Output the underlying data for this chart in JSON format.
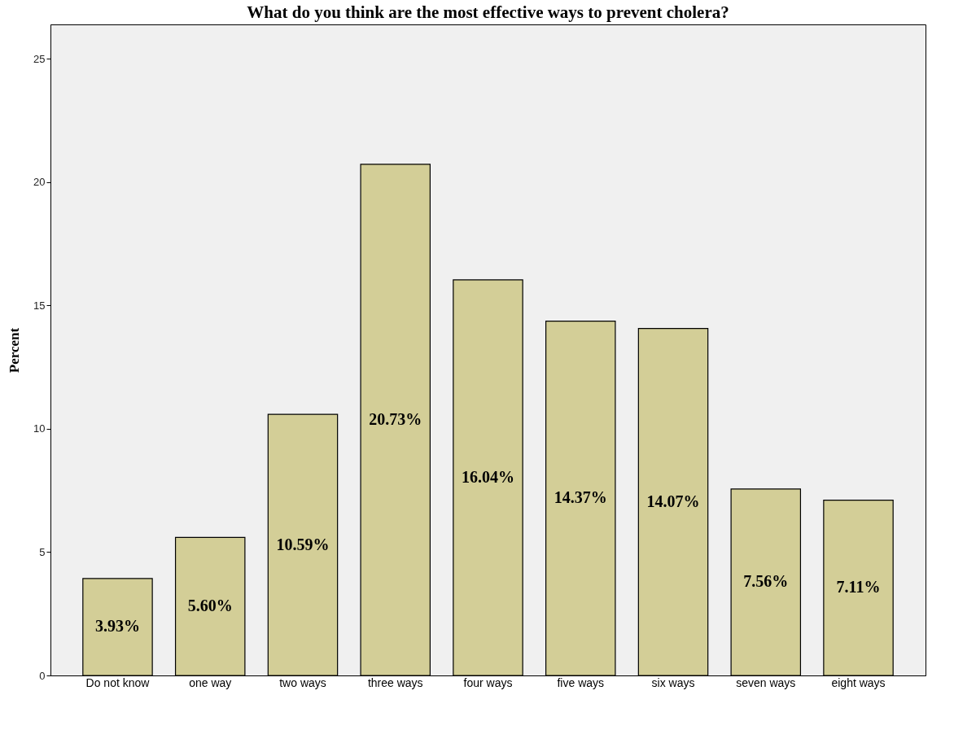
{
  "chart_data": {
    "type": "bar",
    "title": "What do you think are the most effective ways to prevent cholera?",
    "ylabel": "Percent",
    "categories": [
      "Do not know",
      "one way",
      "two ways",
      "three ways",
      "four ways",
      "five ways",
      "six ways",
      "seven ways",
      "eight ways"
    ],
    "values": [
      3.93,
      5.6,
      10.59,
      20.73,
      16.04,
      14.37,
      14.07,
      7.56,
      7.11
    ],
    "value_labels": [
      "3.93%",
      "5.60%",
      "10.59%",
      "20.73%",
      "16.04%",
      "14.37%",
      "14.07%",
      "7.56%",
      "7.11%"
    ],
    "color": "#d3ce97",
    "ylim": [
      0,
      26.4
    ],
    "yticks": [
      0,
      5,
      10,
      15,
      20,
      25
    ],
    "grid": false
  }
}
